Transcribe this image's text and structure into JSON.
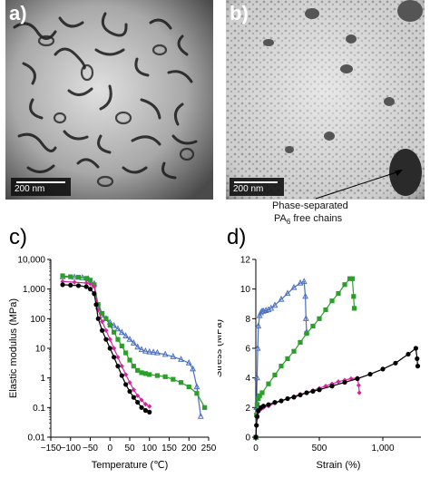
{
  "panels": {
    "a": {
      "label": "a)",
      "scalebar": "200 nm"
    },
    "b": {
      "label": "b)",
      "scalebar": "200 nm",
      "annotation_line1": "Phase-separated",
      "annotation_line2_prefix": "PA",
      "annotation_line2_sub": "6",
      "annotation_line2_suffix": " free chains"
    },
    "c": {
      "label": "c)"
    },
    "d": {
      "label": "d)"
    }
  },
  "colors": {
    "blue": "#4a6fc0",
    "green": "#2aa02a",
    "magenta": "#d02a9a",
    "black": "#000000"
  },
  "chart_data": [
    {
      "type": "line",
      "panel": "c",
      "xlabel": "Temperature (℃)",
      "ylabel": "Elastic modulus (MPa)",
      "yscale": "log",
      "xlim": [
        -150,
        250
      ],
      "ylim": [
        0.01,
        10000
      ],
      "xticks": [
        -150,
        -100,
        -50,
        0,
        50,
        100,
        150,
        200,
        250
      ],
      "yticks": [
        0.01,
        0.1,
        1,
        10,
        100,
        1000,
        10000
      ],
      "ytick_labels": [
        "0.01",
        "0.1",
        "1",
        "10",
        "100",
        "1,000",
        "10,000"
      ],
      "series": [
        {
          "color": "blue",
          "marker": "triangle",
          "x": [
            -120,
            -90,
            -70,
            -55,
            -40,
            -30,
            -20,
            -10,
            0,
            10,
            20,
            30,
            40,
            50,
            60,
            70,
            80,
            90,
            100,
            110,
            120,
            140,
            160,
            180,
            200,
            210,
            220,
            230
          ],
          "y": [
            2600,
            2500,
            2400,
            2200,
            1500,
            250,
            130,
            100,
            75,
            58,
            45,
            34,
            26,
            20,
            15,
            11,
            9,
            8,
            7.5,
            7.3,
            7,
            6.2,
            5.2,
            4.2,
            3.2,
            2,
            0.5,
            0.05
          ]
        },
        {
          "color": "green",
          "marker": "square",
          "x": [
            -120,
            -100,
            -80,
            -60,
            -50,
            -40,
            -30,
            -20,
            -10,
            0,
            10,
            20,
            30,
            40,
            50,
            60,
            70,
            80,
            90,
            100,
            120,
            140,
            160,
            180,
            200,
            220,
            240
          ],
          "y": [
            2800,
            2600,
            2500,
            2300,
            2000,
            1400,
            300,
            150,
            100,
            60,
            35,
            20,
            12,
            7,
            4,
            2.5,
            1.8,
            1.5,
            1.4,
            1.3,
            1.2,
            1.1,
            0.9,
            0.7,
            0.5,
            0.3,
            0.1
          ]
        },
        {
          "color": "magenta",
          "marker": "diamond",
          "x": [
            -120,
            -90,
            -60,
            -50,
            -40,
            -30,
            -20,
            -10,
            0,
            10,
            20,
            30,
            40,
            50,
            60,
            70,
            80,
            90,
            100
          ],
          "y": [
            1800,
            1700,
            1600,
            1500,
            1200,
            200,
            80,
            40,
            20,
            10,
            5,
            2.5,
            1.3,
            0.7,
            0.4,
            0.25,
            0.18,
            0.13,
            0.11
          ]
        },
        {
          "color": "black",
          "marker": "circle",
          "x": [
            -120,
            -100,
            -80,
            -60,
            -50,
            -40,
            -35,
            -30,
            -20,
            -10,
            0,
            10,
            20,
            30,
            40,
            50,
            60,
            70,
            80,
            90,
            100
          ],
          "y": [
            1400,
            1350,
            1300,
            1200,
            1000,
            700,
            300,
            100,
            40,
            20,
            10,
            5,
            2.5,
            1.2,
            0.6,
            0.35,
            0.22,
            0.15,
            0.1,
            0.08,
            0.07
          ]
        }
      ]
    },
    {
      "type": "line",
      "panel": "d",
      "xlabel": "Strain (%)",
      "ylabel": "Stress (MPa)",
      "xlim": [
        0,
        1300
      ],
      "ylim": [
        0,
        12
      ],
      "xticks": [
        0,
        500,
        1000
      ],
      "xtick_labels": [
        "0",
        "500",
        "1,000"
      ],
      "yticks": [
        0,
        2,
        4,
        6,
        8,
        10,
        12
      ],
      "series": [
        {
          "color": "blue",
          "marker": "triangle",
          "x": [
            0,
            5,
            10,
            15,
            20,
            30,
            40,
            50,
            60,
            80,
            100,
            120,
            150,
            200,
            250,
            300,
            350,
            380,
            390,
            395,
            400
          ],
          "y": [
            0,
            2,
            4,
            6,
            7.5,
            8.2,
            8.4,
            8.5,
            8.5,
            8.55,
            8.6,
            8.7,
            8.9,
            9.3,
            9.7,
            10.1,
            10.4,
            10.5,
            9.5,
            8,
            7.1
          ]
        },
        {
          "color": "green",
          "marker": "square",
          "x": [
            0,
            5,
            10,
            20,
            30,
            50,
            100,
            150,
            200,
            250,
            300,
            350,
            400,
            450,
            500,
            550,
            600,
            650,
            700,
            740,
            760,
            770,
            775
          ],
          "y": [
            0,
            1.5,
            2.2,
            2.6,
            2.8,
            3.0,
            3.6,
            4.2,
            4.8,
            5.3,
            5.8,
            6.4,
            7.0,
            7.5,
            8.0,
            8.6,
            9.2,
            9.7,
            10.3,
            10.7,
            10.7,
            9.5,
            8.7
          ]
        },
        {
          "color": "magenta",
          "marker": "diamond",
          "x": [
            0,
            5,
            10,
            20,
            40,
            60,
            100,
            150,
            200,
            250,
            300,
            350,
            400,
            450,
            500,
            550,
            600,
            650,
            700,
            750,
            800,
            810,
            815
          ],
          "y": [
            0,
            0.8,
            1.3,
            1.7,
            1.9,
            2.0,
            2.1,
            2.3,
            2.45,
            2.6,
            2.75,
            2.9,
            3.0,
            3.15,
            3.3,
            3.45,
            3.6,
            3.75,
            3.85,
            3.95,
            4.0,
            3.5,
            3.0
          ]
        },
        {
          "color": "black",
          "marker": "circle",
          "x": [
            0,
            5,
            10,
            20,
            40,
            60,
            100,
            150,
            200,
            250,
            300,
            350,
            400,
            450,
            500,
            600,
            700,
            800,
            900,
            1000,
            1100,
            1200,
            1260,
            1270,
            1275
          ],
          "y": [
            0,
            0.8,
            1.4,
            1.8,
            2.0,
            2.1,
            2.2,
            2.35,
            2.45,
            2.6,
            2.7,
            2.85,
            3.0,
            3.1,
            3.2,
            3.45,
            3.7,
            3.95,
            4.25,
            4.6,
            5.0,
            5.6,
            6.0,
            5.3,
            4.8
          ]
        }
      ]
    }
  ]
}
